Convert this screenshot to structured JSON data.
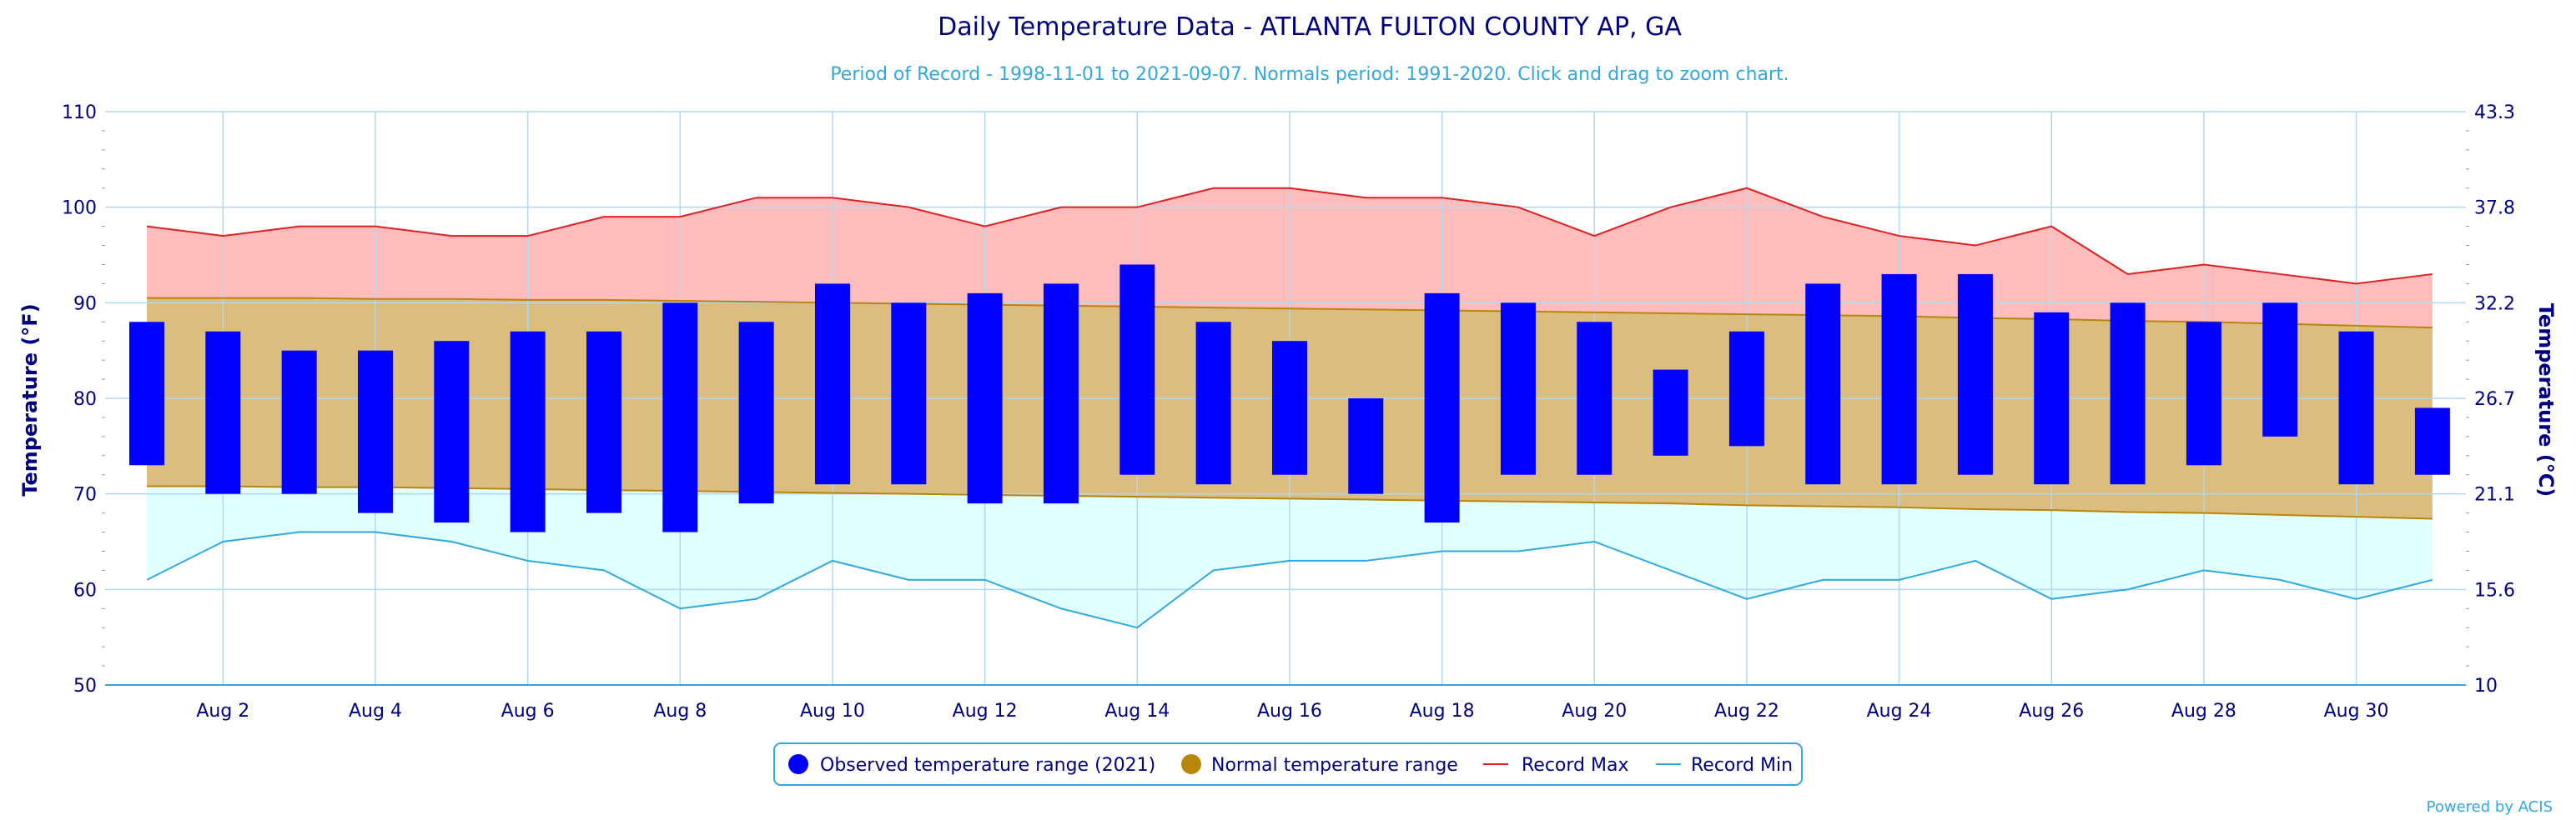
{
  "chart_data": {
    "type": "bar",
    "title": "Daily Temperature Data - ATLANTA FULTON COUNTY AP, GA",
    "subtitle": "Period of Record - 1998-11-01 to 2021-09-07. Normals period: 1991-2020. Click and drag to zoom chart.",
    "ylabel": "Temperature (°F)",
    "ylabel_right": "Temperature (°C)",
    "ylim": [
      50,
      110
    ],
    "xlim": [
      1,
      31
    ],
    "y_ticks": [
      50,
      60,
      70,
      80,
      90,
      100,
      110
    ],
    "y_ticks_right": [
      "10",
      "15.6",
      "21.1",
      "26.7",
      "32.2",
      "37.8",
      "43.3"
    ],
    "x_tick_labels": [
      "Aug 2",
      "Aug 4",
      "Aug 6",
      "Aug 8",
      "Aug 10",
      "Aug 12",
      "Aug 14",
      "Aug 16",
      "Aug 18",
      "Aug 20",
      "Aug 22",
      "Aug 24",
      "Aug 26",
      "Aug 28",
      "Aug 30"
    ],
    "x_tick_days": [
      2,
      4,
      6,
      8,
      10,
      12,
      14,
      16,
      18,
      20,
      22,
      24,
      26,
      28,
      30
    ],
    "days": [
      1,
      2,
      3,
      4,
      5,
      6,
      7,
      8,
      9,
      10,
      11,
      12,
      13,
      14,
      15,
      16,
      17,
      18,
      19,
      20,
      21,
      22,
      23,
      24,
      25,
      26,
      27,
      28,
      29,
      30,
      31
    ],
    "series": [
      {
        "name": "Observed temperature range (2021)",
        "color": "#0000ff",
        "low": [
          73,
          70,
          70,
          68,
          67,
          66,
          68,
          66,
          69,
          71,
          71,
          69,
          69,
          72,
          71,
          72,
          70,
          67,
          72,
          72,
          74,
          75,
          71,
          71,
          72,
          71,
          71,
          73,
          76,
          71,
          72
        ],
        "high": [
          88,
          87,
          85,
          85,
          86,
          87,
          87,
          90,
          88,
          92,
          90,
          91,
          92,
          94,
          88,
          86,
          80,
          91,
          90,
          88,
          83,
          87,
          92,
          93,
          93,
          89,
          90,
          88,
          90,
          87,
          79
        ]
      },
      {
        "name": "Normal temperature range",
        "color": "#b8860b",
        "low": [
          70.8,
          70.8,
          70.7,
          70.7,
          70.6,
          70.5,
          70.4,
          70.3,
          70.2,
          70.1,
          70.0,
          69.9,
          69.8,
          69.7,
          69.6,
          69.5,
          69.4,
          69.3,
          69.2,
          69.1,
          69.0,
          68.8,
          68.7,
          68.6,
          68.4,
          68.3,
          68.1,
          68.0,
          67.8,
          67.6,
          67.4
        ],
        "high": [
          90.5,
          90.5,
          90.5,
          90.4,
          90.4,
          90.3,
          90.3,
          90.2,
          90.1,
          90.0,
          89.9,
          89.8,
          89.7,
          89.6,
          89.5,
          89.4,
          89.3,
          89.2,
          89.1,
          89.0,
          88.9,
          88.8,
          88.7,
          88.6,
          88.4,
          88.3,
          88.1,
          88.0,
          87.8,
          87.6,
          87.4
        ]
      },
      {
        "name": "Record Max",
        "color": "#e02020",
        "values": [
          98,
          97,
          98,
          98,
          97,
          97,
          99,
          99,
          101,
          101,
          100,
          98,
          100,
          100,
          102,
          102,
          101,
          101,
          100,
          97,
          100,
          102,
          99,
          97,
          96,
          98,
          93,
          94,
          93,
          92,
          93
        ]
      },
      {
        "name": "Record Min",
        "color": "#30a8e0",
        "values": [
          61,
          65,
          66,
          66,
          65,
          63,
          62,
          58,
          59,
          63,
          61,
          61,
          58,
          56,
          62,
          63,
          63,
          64,
          64,
          65,
          62,
          59,
          61,
          61,
          63,
          59,
          60,
          62,
          61,
          59,
          61
        ]
      }
    ],
    "colors": {
      "record_band": "#ffbcbc",
      "normal_band": "#dbbd7f",
      "low_band": "#e0ffff",
      "grid": "#b0d8f0",
      "axis_line": "#30a8e0"
    },
    "grid": true,
    "legend": "bottom-center"
  },
  "credit": "Powered by ACIS"
}
